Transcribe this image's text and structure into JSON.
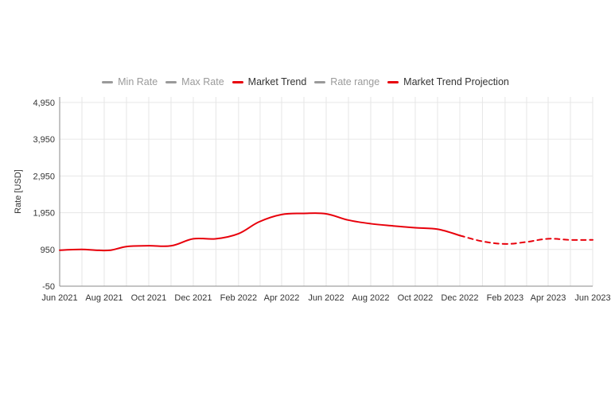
{
  "legend": [
    {
      "label": "Min Rate",
      "color": "#9a9a9a",
      "active": false
    },
    {
      "label": "Max Rate",
      "color": "#9a9a9a",
      "active": false
    },
    {
      "label": "Market Trend",
      "color": "#e8000b",
      "active": true
    },
    {
      "label": "Rate range",
      "color": "#9a9a9a",
      "active": false
    },
    {
      "label": "Market Trend Projection",
      "color": "#e8000b",
      "active": true
    }
  ],
  "chart_data": {
    "type": "line",
    "ylabel": "Rate [USD]",
    "xlabel": "",
    "ylim": [
      -50,
      5100
    ],
    "yticks": [
      -50,
      950,
      1950,
      2950,
      3950,
      4950
    ],
    "ytick_labels": [
      "-50",
      "950",
      "1,950",
      "2,950",
      "3,950",
      "4,950"
    ],
    "xlim": [
      "2021-06-01",
      "2023-06-01"
    ],
    "xticks": [
      "2021-06-01",
      "2021-08-01",
      "2021-10-01",
      "2021-12-01",
      "2022-02-01",
      "2022-04-01",
      "2022-06-01",
      "2022-08-01",
      "2022-10-01",
      "2022-12-01",
      "2023-02-01",
      "2023-04-01",
      "2023-06-01"
    ],
    "xtick_labels": [
      "Jun 2021",
      "Aug 2021",
      "Oct 2021",
      "Dec 2021",
      "Feb 2022",
      "Apr 2022",
      "Jun 2022",
      "Aug 2022",
      "Oct 2022",
      "Dec 2022",
      "Feb 2023",
      "Apr 2023",
      "Jun 2023"
    ],
    "grid": true,
    "legend_position": "top-center",
    "series": [
      {
        "name": "Market Trend",
        "color": "#e8000b",
        "dash": false,
        "points": [
          [
            "2021-06-01",
            930
          ],
          [
            "2021-07-01",
            950
          ],
          [
            "2021-07-20",
            930
          ],
          [
            "2021-08-10",
            930
          ],
          [
            "2021-09-01",
            1030
          ],
          [
            "2021-10-01",
            1050
          ],
          [
            "2021-11-01",
            1050
          ],
          [
            "2021-12-01",
            1240
          ],
          [
            "2022-01-01",
            1240
          ],
          [
            "2022-02-01",
            1380
          ],
          [
            "2022-03-01",
            1700
          ],
          [
            "2022-04-01",
            1900
          ],
          [
            "2022-05-01",
            1930
          ],
          [
            "2022-06-01",
            1920
          ],
          [
            "2022-07-01",
            1750
          ],
          [
            "2022-08-01",
            1650
          ],
          [
            "2022-09-01",
            1590
          ],
          [
            "2022-10-01",
            1540
          ],
          [
            "2022-11-01",
            1500
          ],
          [
            "2022-12-01",
            1330
          ]
        ]
      },
      {
        "name": "Market Trend Projection",
        "color": "#e8000b",
        "dash": true,
        "points": [
          [
            "2022-12-01",
            1330
          ],
          [
            "2023-01-01",
            1170
          ],
          [
            "2023-02-01",
            1100
          ],
          [
            "2023-03-01",
            1150
          ],
          [
            "2023-04-01",
            1240
          ],
          [
            "2023-05-01",
            1210
          ],
          [
            "2023-06-01",
            1210
          ]
        ]
      }
    ]
  }
}
